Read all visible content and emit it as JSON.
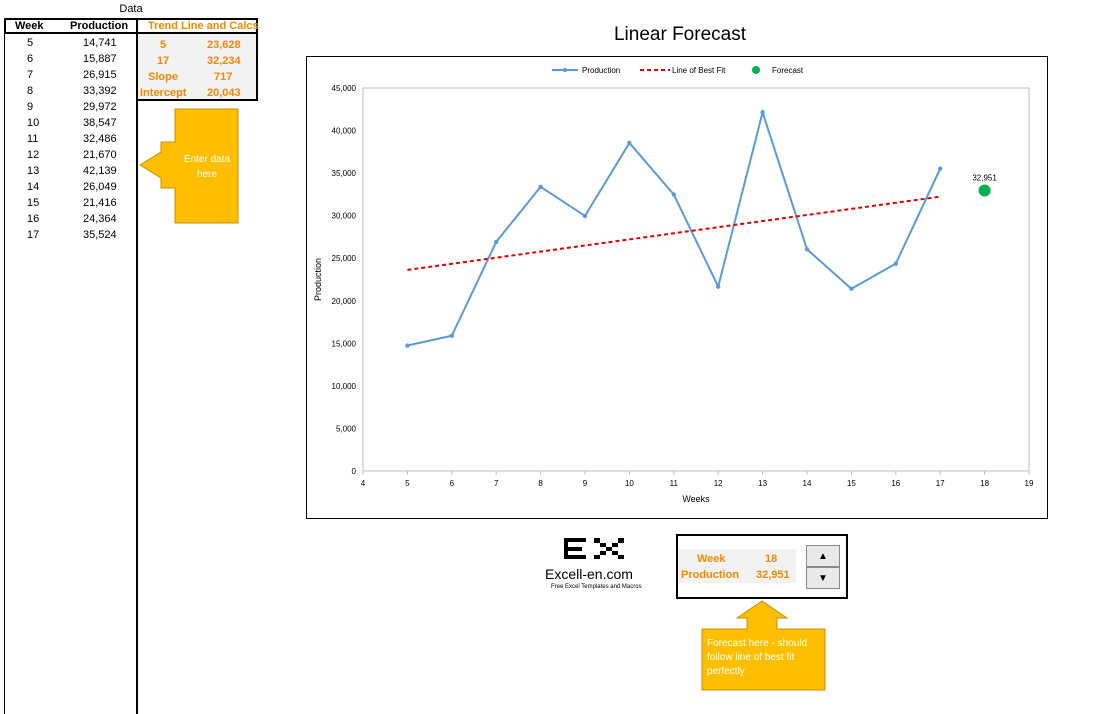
{
  "data_table": {
    "caption": "Data",
    "headers": {
      "week": "Week",
      "production": "Production"
    },
    "rows": [
      {
        "week": "5",
        "production": "14,741"
      },
      {
        "week": "6",
        "production": "15,887"
      },
      {
        "week": "7",
        "production": "26,915"
      },
      {
        "week": "8",
        "production": "33,392"
      },
      {
        "week": "9",
        "production": "29,972"
      },
      {
        "week": "10",
        "production": "38,547"
      },
      {
        "week": "11",
        "production": "32,486"
      },
      {
        "week": "12",
        "production": "21,670"
      },
      {
        "week": "13",
        "production": "42,139"
      },
      {
        "week": "14",
        "production": "26,049"
      },
      {
        "week": "15",
        "production": "21,416"
      },
      {
        "week": "16",
        "production": "24,364"
      },
      {
        "week": "17",
        "production": "35,524"
      }
    ]
  },
  "trend_calcs": {
    "header": "Trend Line and Calcs",
    "start_week": "5",
    "start_value": "23,628",
    "end_week": "17",
    "end_value": "32,234",
    "slope_label": "Slope",
    "slope_value": "717",
    "intercept_label": "Intercept",
    "intercept_value": "20,043"
  },
  "callout_enter": "Enter data here",
  "callout_forecast": "Forecast here - should follow line of best fit perfectly",
  "chart_data": {
    "type": "line",
    "title": "Linear Forecast",
    "xlabel": "Weeks",
    "ylabel": "Production",
    "xlim": [
      4,
      19
    ],
    "ylim": [
      0,
      45000
    ],
    "x_ticks": [
      4,
      5,
      6,
      7,
      8,
      9,
      10,
      11,
      12,
      13,
      14,
      15,
      16,
      17,
      18,
      19
    ],
    "y_ticks": [
      0,
      5000,
      10000,
      15000,
      20000,
      25000,
      30000,
      35000,
      40000,
      45000
    ],
    "y_tick_labels": [
      "0",
      "5,000",
      "10,000",
      "15,000",
      "20,000",
      "25,000",
      "30,000",
      "35,000",
      "40,000",
      "45,000"
    ],
    "legend_position": "top",
    "grid": false,
    "series": [
      {
        "name": "Production",
        "color": "#5b9bd5",
        "x": [
          5,
          6,
          7,
          8,
          9,
          10,
          11,
          12,
          13,
          14,
          15,
          16,
          17
        ],
        "values": [
          14741,
          15887,
          26915,
          33392,
          29972,
          38547,
          32486,
          21670,
          42139,
          26049,
          21416,
          24364,
          35524
        ]
      },
      {
        "name": "Line of Best Fit",
        "color": "#e00000",
        "x": [
          5,
          17
        ],
        "values": [
          23628,
          32234
        ]
      },
      {
        "name": "Forecast",
        "color": "#00b050",
        "x": [
          18
        ],
        "values": [
          32951
        ],
        "data_label": "32,951"
      }
    ]
  },
  "logo": {
    "mark": "EX",
    "text": "Excell-en.com",
    "tagline": "Free Excel Templates and Macros"
  },
  "forecast_panel": {
    "week_label": "Week",
    "week_value": "18",
    "production_label": "Production",
    "production_value": "32,951",
    "spin_up": "▲",
    "spin_down": "▼"
  }
}
